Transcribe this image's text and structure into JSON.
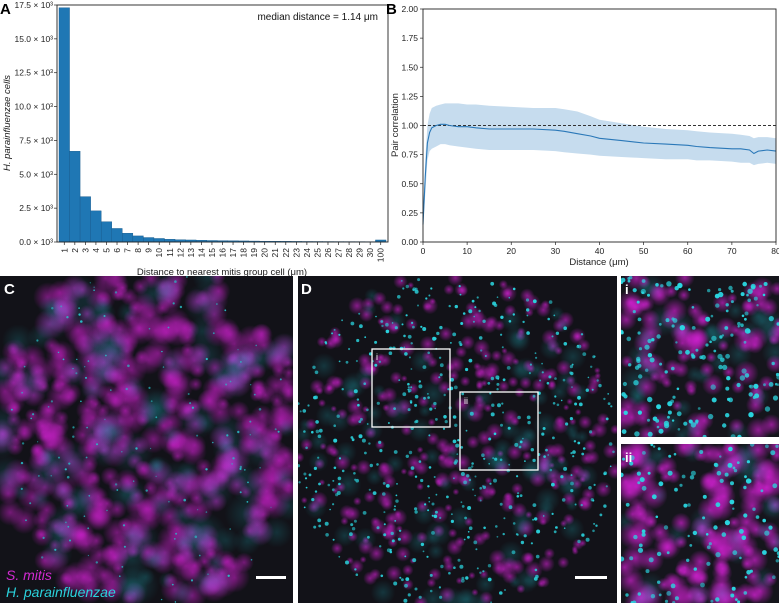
{
  "panels": {
    "A": "A",
    "B": "B",
    "C": "C",
    "D": "D",
    "inset_i": "i",
    "inset_ii": "ii",
    "box_i": "i",
    "box_ii": "ii"
  },
  "legend": {
    "species_1": "S. mitis",
    "species_2": "H. parainfluenzae"
  },
  "colors": {
    "bar": "#1f77b4",
    "line": "#2a78b8",
    "band": "#c6dcee",
    "magenta": "#c81ec8",
    "cyan": "#22c8d2",
    "background": "#111116"
  },
  "chart_data": [
    {
      "type": "bar",
      "panel": "A",
      "title": "",
      "annotation": "median distance = 1.14 μm",
      "xlabel": "Distance to nearest mitis group cell (μm)",
      "ylabel": "H. parainfluenzae cells",
      "categories": [
        "1",
        "2",
        "3",
        "4",
        "5",
        "6",
        "7",
        "8",
        "9",
        "10",
        "11",
        "12",
        "13",
        "14",
        "15",
        "16",
        "17",
        "18",
        "19",
        "20",
        "21",
        "22",
        "23",
        "24",
        "25",
        "26",
        "27",
        "28",
        "29",
        "30",
        "100"
      ],
      "values": [
        17300,
        6700,
        3350,
        2300,
        1500,
        1000,
        650,
        450,
        330,
        260,
        200,
        170,
        150,
        130,
        110,
        100,
        90,
        80,
        70,
        60,
        55,
        50,
        45,
        40,
        38,
        35,
        32,
        30,
        28,
        25,
        150
      ],
      "ylim": [
        0,
        17500
      ],
      "yticks": [
        0,
        2500,
        5000,
        7500,
        10000,
        12500,
        15000,
        17500
      ],
      "ytick_labels": [
        "0.0 × 10³",
        "2.5 × 10³",
        "5.0 × 10³",
        "7.5 × 10³",
        "10.0 × 10³",
        "12.5 × 10³",
        "15.0 × 10³",
        "17.5 × 10³"
      ]
    },
    {
      "type": "line",
      "panel": "B",
      "title": "",
      "xlabel": "Distance (μm)",
      "ylabel": "Pair correlation",
      "xlim": [
        0,
        80
      ],
      "ylim": [
        0,
        2.0
      ],
      "xticks": [
        0,
        10,
        20,
        30,
        40,
        50,
        60,
        70,
        80
      ],
      "yticks": [
        0.0,
        0.25,
        0.5,
        0.75,
        1.0,
        1.25,
        1.5,
        1.75,
        2.0
      ],
      "ytick_labels": [
        "0.00",
        "0.25",
        "0.50",
        "0.75",
        "1.00",
        "1.25",
        "1.50",
        "1.75",
        "2.00"
      ],
      "reference_line": 1.0,
      "x": [
        0,
        0.5,
        1,
        1.5,
        2,
        3,
        4,
        5,
        6,
        8,
        10,
        12,
        15,
        20,
        25,
        30,
        32,
        35,
        38,
        40,
        45,
        50,
        55,
        60,
        62,
        65,
        70,
        72,
        74,
        75,
        76,
        78,
        80
      ],
      "y": [
        0.15,
        0.55,
        0.85,
        0.94,
        0.98,
        1.0,
        1.01,
        1.01,
        1.0,
        0.99,
        0.99,
        0.98,
        0.97,
        0.97,
        0.97,
        0.96,
        0.95,
        0.93,
        0.91,
        0.89,
        0.87,
        0.85,
        0.84,
        0.83,
        0.82,
        0.81,
        0.8,
        0.8,
        0.79,
        0.76,
        0.78,
        0.79,
        0.78
      ],
      "upper": [
        0.17,
        0.7,
        1.0,
        1.1,
        1.15,
        1.17,
        1.18,
        1.19,
        1.19,
        1.19,
        1.18,
        1.18,
        1.17,
        1.16,
        1.15,
        1.15,
        1.14,
        1.12,
        1.08,
        1.05,
        1.02,
        0.99,
        0.97,
        0.96,
        0.95,
        0.94,
        0.93,
        0.92,
        0.91,
        0.89,
        0.9,
        0.9,
        0.89
      ],
      "lower": [
        0.13,
        0.4,
        0.7,
        0.78,
        0.8,
        0.82,
        0.84,
        0.84,
        0.83,
        0.82,
        0.81,
        0.8,
        0.79,
        0.79,
        0.79,
        0.78,
        0.77,
        0.76,
        0.75,
        0.74,
        0.73,
        0.72,
        0.71,
        0.71,
        0.7,
        0.7,
        0.69,
        0.68,
        0.68,
        0.66,
        0.67,
        0.68,
        0.67
      ]
    }
  ]
}
